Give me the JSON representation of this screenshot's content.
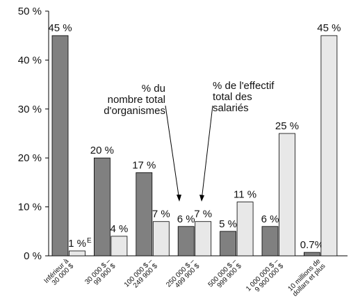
{
  "chart_data": {
    "type": "bar",
    "categories": [
      "Inférieur à\n30 000 $",
      "30 000 $ –\n99 900 $",
      "100 000 $ –\n249 900 $",
      "250 000 $ –\n499 900 $",
      "500 000 $ –\n999 900 $",
      "1 000 000 $ –\n9 900 000 $",
      "10 millions de\ndollars et plus"
    ],
    "series": [
      {
        "name": "% du\nnombre total\nd'organismes",
        "color": "#808080",
        "values": [
          45,
          20,
          17,
          6,
          5,
          6,
          0.7
        ],
        "value_labels": [
          "45 %",
          "20 %",
          "17 %",
          "6 %",
          "5 %",
          "6 %",
          "0.7%"
        ]
      },
      {
        "name": "% de l'effectif\ntotal des\nsalariés",
        "color": "#e8e8e8",
        "values": [
          1,
          4,
          7,
          7,
          11,
          25,
          45
        ],
        "value_labels": [
          "1 %",
          "4 %",
          "7 %",
          "7 %",
          "11 %",
          "25 %",
          "45 %"
        ]
      }
    ],
    "annotations": [
      {
        "text": "E"
      }
    ],
    "ylim": [
      0,
      50
    ],
    "yticks": [
      {
        "value": 0,
        "label": "0 %"
      },
      {
        "value": 10,
        "label": "10 %"
      },
      {
        "value": 20,
        "label": "20 %"
      },
      {
        "value": 30,
        "label": "30 %"
      },
      {
        "value": 40,
        "label": "40 %"
      },
      {
        "value": 50,
        "label": "50 %"
      }
    ]
  }
}
